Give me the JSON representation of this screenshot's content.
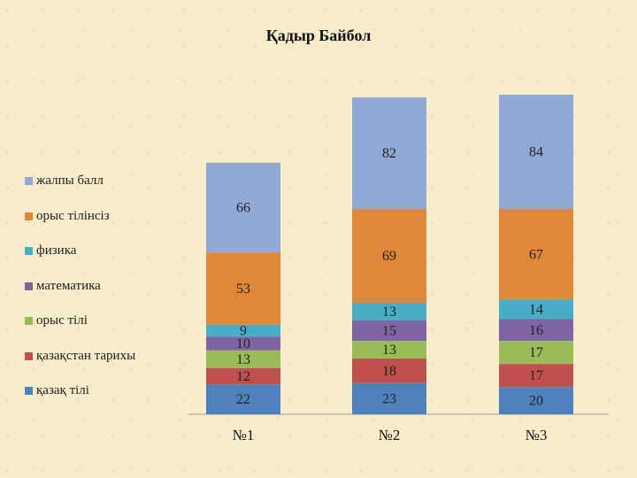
{
  "chart_data": {
    "type": "bar",
    "stacked": true,
    "title": "Қадыр Байбол",
    "categories": [
      "№1",
      "№2",
      "№3"
    ],
    "series": [
      {
        "name": "қазақ тілі",
        "color": "#4f81bd",
        "values": [
          22,
          23,
          20
        ]
      },
      {
        "name": "қазақстан тарихы",
        "color": "#c0504d",
        "values": [
          12,
          18,
          17
        ]
      },
      {
        "name": "орыс тілі",
        "color": "#9bbb59",
        "values": [
          13,
          13,
          17
        ]
      },
      {
        "name": "математика",
        "color": "#8064a2",
        "values": [
          10,
          15,
          16
        ]
      },
      {
        "name": "физика",
        "color": "#4bacc6",
        "values": [
          9,
          13,
          14
        ]
      },
      {
        "name": "орыс тілінсіз",
        "color": "#e0883a",
        "values": [
          53,
          69,
          67
        ]
      },
      {
        "name": "жалпы балл",
        "color": "#93a9d5",
        "values": [
          66,
          82,
          84
        ]
      }
    ],
    "xlabel": "",
    "ylabel": "",
    "ylim": [
      0,
      250
    ],
    "grid": false,
    "legend": "left"
  }
}
